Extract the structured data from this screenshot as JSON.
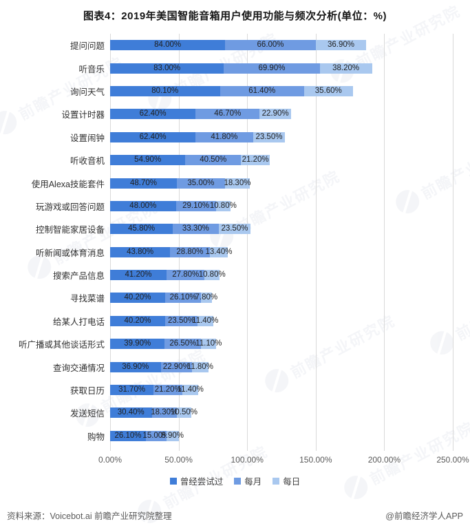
{
  "title": "图表4：2019年美国智能音箱用户使用功能与频次分析(单位：%)",
  "chart_data": {
    "type": "bar",
    "orientation": "horizontal-stacked",
    "title": "图表4：2019年美国智能音箱用户使用功能与频次分析(单位：%)",
    "unit": "%",
    "xlim": [
      0,
      250
    ],
    "x_ticks": [
      "0.00%",
      "50.00%",
      "100.00%",
      "150.00%",
      "200.00%",
      "250.00%"
    ],
    "grid": "vertical",
    "legend_position": "bottom",
    "categories": [
      "提问问题",
      "听音乐",
      "询问天气",
      "设置计时器",
      "设置闹钟",
      "听收音机",
      "使用Alexa技能套件",
      "玩游戏或回答问题",
      "控制智能家居设备",
      "听新闻或体育消息",
      "搜索产品信息",
      "寻找菜谱",
      "给某人打电话",
      "听广播或其他谈话形式",
      "查询交通情况",
      "获取日历",
      "发送短信",
      "购物"
    ],
    "series": [
      {
        "name": "曾经尝试过",
        "color": "#3f7dd8",
        "values": [
          84.0,
          83.0,
          80.1,
          62.4,
          62.4,
          54.9,
          48.7,
          48.0,
          45.8,
          43.8,
          41.2,
          40.2,
          40.2,
          39.9,
          36.9,
          31.7,
          30.4,
          26.1
        ]
      },
      {
        "name": "每月",
        "color": "#6f9be2",
        "values": [
          66.0,
          69.9,
          61.4,
          46.7,
          41.8,
          40.5,
          35.0,
          29.1,
          33.3,
          28.8,
          27.8,
          26.1,
          23.5,
          26.5,
          22.9,
          21.2,
          18.3,
          15.0
        ]
      },
      {
        "name": "每日",
        "color": "#a9c8ef",
        "values": [
          36.9,
          38.2,
          35.6,
          22.9,
          23.5,
          21.2,
          18.3,
          10.8,
          23.5,
          13.4,
          10.8,
          7.8,
          11.4,
          11.1,
          11.8,
          11.4,
          10.5,
          8.9
        ]
      }
    ],
    "gridline_color": "#d9d9d9"
  },
  "footer": {
    "source": "资料来源：Voicebot.ai 前瞻产业研究院整理",
    "credit": "@前瞻经济学人APP"
  },
  "watermark": {
    "text": "前瞻产业研究院"
  }
}
